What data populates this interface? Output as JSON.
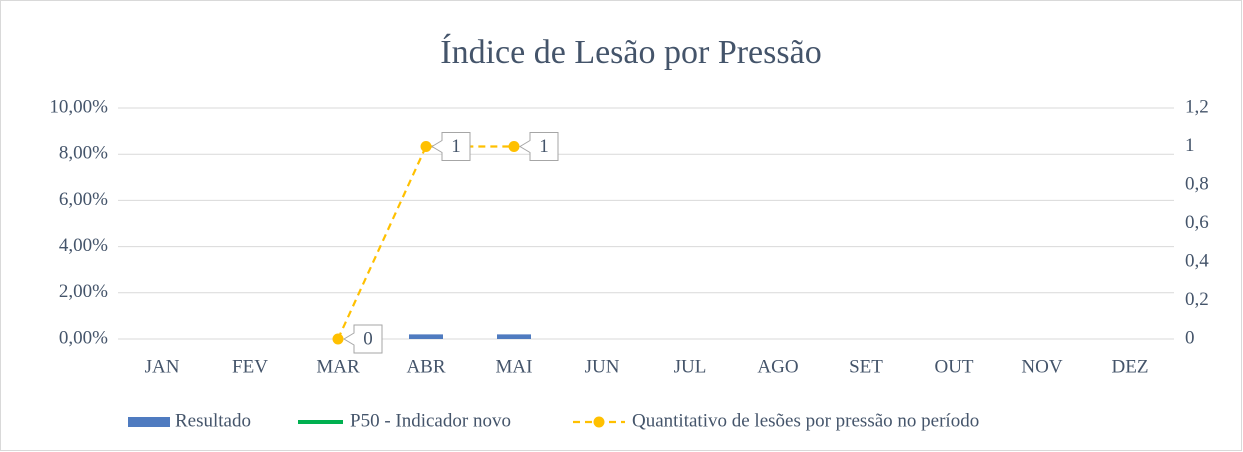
{
  "chart_data": {
    "type": "bar-line",
    "title": "Índice de Lesão por Pressão",
    "categories": [
      "JAN",
      "FEV",
      "MAR",
      "ABR",
      "MAI",
      "JUN",
      "JUL",
      "AGO",
      "SET",
      "OUT",
      "NOV",
      "DEZ"
    ],
    "series": [
      {
        "name": "Resultado",
        "type": "bar",
        "color": "#4f7bc0",
        "values": [
          null,
          null,
          0,
          0.2,
          0.2,
          null,
          null,
          null,
          null,
          null,
          null,
          null
        ]
      },
      {
        "name": "P50 - Indicador novo",
        "type": "line",
        "color": "#00b050",
        "values": [
          null,
          null,
          null,
          null,
          null,
          null,
          null,
          null,
          null,
          null,
          null,
          null
        ]
      },
      {
        "name": "Quantitativo de lesões por pressão no período",
        "type": "line",
        "dashed": true,
        "markers": true,
        "data_labels": true,
        "axis": "y2",
        "color": "#ffc000",
        "values": [
          null,
          null,
          0,
          1,
          1,
          null,
          null,
          null,
          null,
          null,
          null,
          null
        ]
      }
    ],
    "ylim": [
      0,
      10
    ],
    "yticks": [
      {
        "value": 0,
        "label": "0,00%"
      },
      {
        "value": 2,
        "label": "2,00%"
      },
      {
        "value": 4,
        "label": "4,00%"
      },
      {
        "value": 6,
        "label": "6,00%"
      },
      {
        "value": 8,
        "label": "8,00%"
      },
      {
        "value": 10,
        "label": "10,00%"
      }
    ],
    "y2lim": [
      0,
      1.2
    ],
    "y2ticks": [
      0,
      {
        "value": 0.2,
        "label": "0,2"
      },
      {
        "value": 0.4,
        "label": "0,4"
      },
      {
        "value": 0.6,
        "label": "0,6"
      },
      {
        "value": 0.8,
        "label": "0,8"
      },
      1,
      {
        "value": 1.2,
        "label": "1,2"
      }
    ],
    "grid": true,
    "legend": "bottom"
  }
}
